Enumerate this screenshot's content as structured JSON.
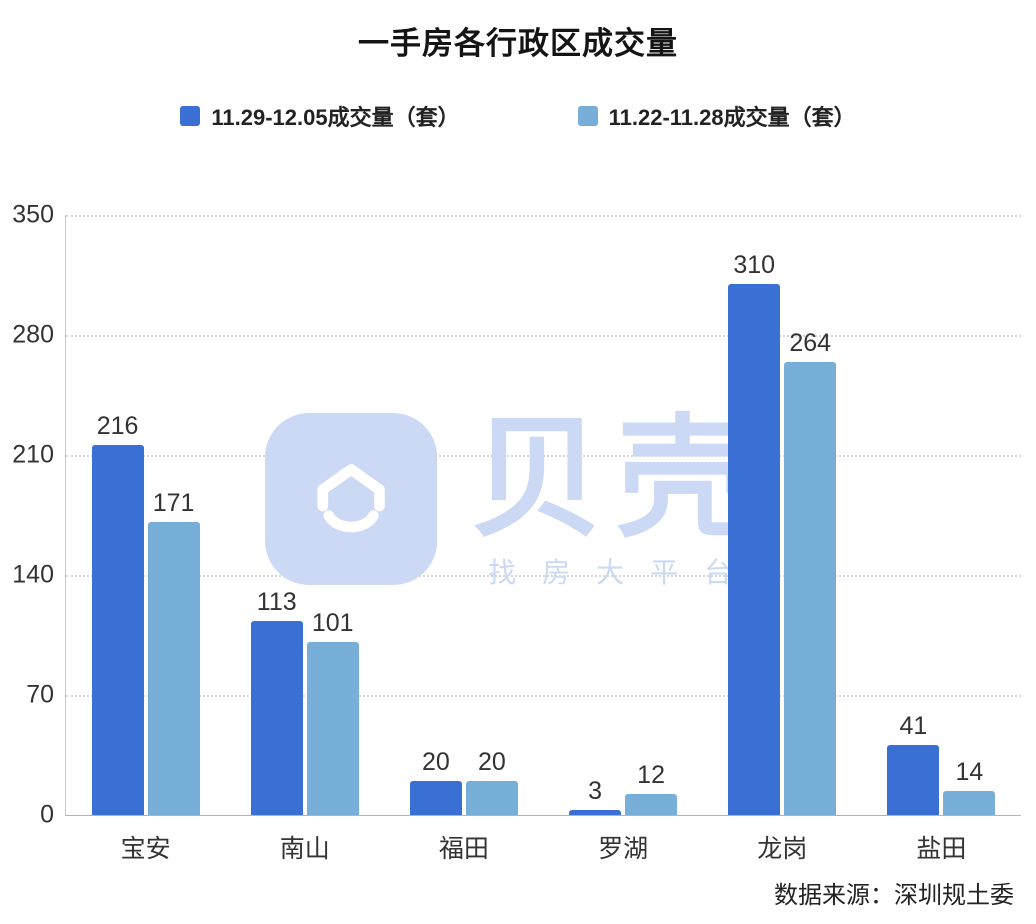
{
  "watermark": {
    "brand": "贝壳",
    "tagline": "找房大平台",
    "color": "#cbd9f5"
  },
  "source_note": "数据来源：深圳规土委",
  "chart_data": {
    "type": "bar",
    "title": "一手房各行政区成交量",
    "categories": [
      "宝安",
      "南山",
      "福田",
      "罗湖",
      "龙岗",
      "盐田"
    ],
    "series": [
      {
        "name": "11.29-12.05成交量（套）",
        "color": "#3a6fd3",
        "values": [
          216,
          113,
          20,
          3,
          310,
          41
        ]
      },
      {
        "name": "11.22-11.28成交量（套）",
        "color": "#77afd9",
        "values": [
          171,
          101,
          20,
          12,
          264,
          14
        ]
      }
    ],
    "ylabel": "",
    "xlabel": "",
    "ylim": [
      0,
      350
    ],
    "yticks": [
      0,
      70,
      140,
      210,
      280,
      350
    ],
    "grid": "dotted-horizontal",
    "legend_position": "top"
  }
}
